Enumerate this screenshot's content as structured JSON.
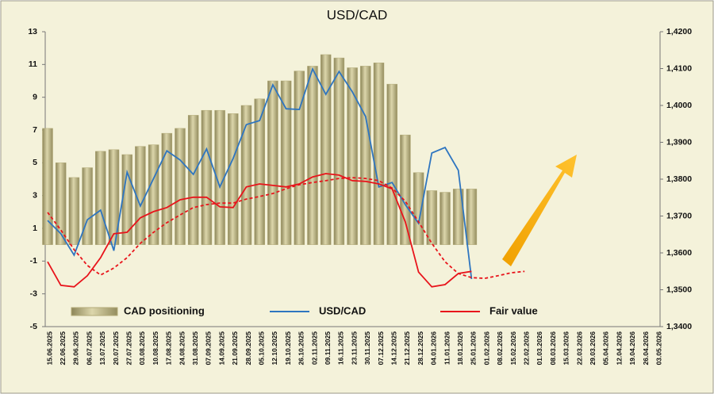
{
  "chart_data": {
    "type": "bar",
    "title": "USD/CAD",
    "categories": [
      "15.06.2025",
      "22.06.2025",
      "29.06.2025",
      "06.07.2025",
      "13.07.2025",
      "20.07.2025",
      "27.07.2025",
      "03.08.2025",
      "10.08.2025",
      "17.08.2025",
      "24.08.2025",
      "31.08.2025",
      "07.09.2025",
      "14.09.2025",
      "21.09.2025",
      "28.09.2025",
      "05.10.2025",
      "12.10.2025",
      "19.10.2025",
      "26.10.2025",
      "02.11.2025",
      "09.11.2025",
      "16.11.2025",
      "23.11.2025",
      "30.11.2025",
      "07.12.2025",
      "14.12.2025",
      "21.12.2025",
      "28.12.2025",
      "04.01.2026",
      "11.01.2026",
      "18.01.2026",
      "25.01.2026",
      "01.02.2026",
      "08.02.2026",
      "15.02.2026",
      "22.02.2026",
      "01.03.2026",
      "08.03.2026",
      "15.03.2026",
      "22.03.2026",
      "29.03.2026",
      "05.04.2026",
      "12.04.2026",
      "19.04.2026",
      "26.04.2026",
      "03.05.2026"
    ],
    "series": [
      {
        "name": "CAD positioning",
        "type": "bar",
        "color": "#b3ab78",
        "values": [
          7.1,
          5.0,
          4.1,
          4.7,
          5.7,
          5.8,
          5.5,
          6.0,
          6.1,
          6.8,
          7.1,
          7.9,
          8.2,
          8.2,
          8.0,
          8.5,
          8.9,
          10.0,
          10.0,
          10.6,
          10.9,
          11.6,
          11.4,
          10.8,
          10.9,
          11.1,
          9.8,
          6.7,
          4.4,
          3.3,
          3.2,
          3.4,
          3.4,
          null,
          null,
          null,
          null,
          null,
          null,
          null,
          null,
          null,
          null,
          null,
          null,
          null,
          null
        ]
      },
      {
        "name": "USD/CAD",
        "type": "line",
        "axis": "y2",
        "color": "#2e75c0",
        "values": [
          1.3688,
          1.3652,
          1.3594,
          1.369,
          1.3716,
          1.3606,
          1.3819,
          1.3727,
          1.3802,
          1.3877,
          1.3852,
          1.3813,
          1.3882,
          1.3779,
          1.3856,
          1.3948,
          1.3959,
          1.4056,
          1.3991,
          1.3989,
          1.4099,
          1.403,
          1.4092,
          1.4037,
          1.397,
          1.3779,
          1.3791,
          1.3731,
          1.368,
          1.3871,
          1.3886,
          1.3824,
          1.3529,
          null,
          null,
          null,
          null,
          null,
          null,
          null,
          null,
          null,
          null,
          null,
          null,
          null,
          null
        ]
      },
      {
        "name": "Fair value",
        "type": "line",
        "axis": "y2",
        "color": "#e8141b",
        "values": [
          1.3576,
          1.3512,
          1.3508,
          1.3538,
          1.3587,
          1.3652,
          1.3656,
          1.3695,
          1.3712,
          1.3723,
          1.3744,
          1.3751,
          1.3751,
          1.3725,
          1.3723,
          1.3779,
          1.3787,
          1.3783,
          1.3779,
          1.3787,
          1.3806,
          1.3815,
          1.3811,
          1.3796,
          1.3794,
          1.3787,
          1.3774,
          1.3684,
          1.3548,
          1.3508,
          1.3514,
          1.3544,
          1.355,
          null,
          null,
          null,
          null,
          null,
          null,
          null,
          null,
          null,
          null,
          null,
          null,
          null,
          null
        ]
      },
      {
        "type": "line",
        "axis": "y2",
        "color": "#e8141b",
        "dashed": true,
        "values": [
          1.371,
          1.3662,
          1.3609,
          1.3566,
          1.354,
          1.3559,
          1.3587,
          1.3626,
          1.3656,
          1.3682,
          1.3703,
          1.3723,
          1.3731,
          1.3735,
          1.3735,
          1.3746,
          1.3753,
          1.3761,
          1.3774,
          1.3785,
          1.3791,
          1.3796,
          1.3802,
          1.3804,
          1.3802,
          1.3796,
          1.3776,
          1.374,
          1.3684,
          1.3626,
          1.3576,
          1.3544,
          1.3533,
          1.3531,
          1.3538,
          1.3546,
          1.355,
          null,
          null,
          null,
          null,
          null,
          null,
          null,
          null,
          null,
          null
        ]
      }
    ],
    "ylim": [
      -5,
      13
    ],
    "yticks": [
      -5,
      -3,
      -1,
      1,
      3,
      5,
      7,
      9,
      11,
      13
    ],
    "y2lim": [
      1.34,
      1.42
    ],
    "y2ticks": [
      {
        "value": 1.34,
        "label": "1,3400"
      },
      {
        "value": 1.35,
        "label": "1,3500"
      },
      {
        "value": 1.36,
        "label": "1,3600"
      },
      {
        "value": 1.37,
        "label": "1,3700"
      },
      {
        "value": 1.38,
        "label": "1,3800"
      },
      {
        "value": 1.39,
        "label": "1,3900"
      },
      {
        "value": 1.4,
        "label": "1,4000"
      },
      {
        "value": 1.41,
        "label": "1,4100"
      },
      {
        "value": 1.42,
        "label": "1,4200"
      }
    ],
    "grid": false,
    "legend": "bottom"
  }
}
